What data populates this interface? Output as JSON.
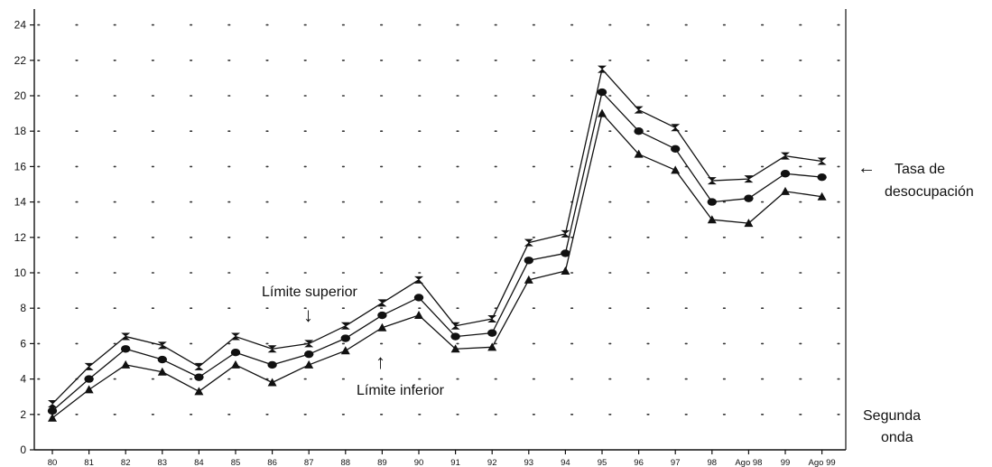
{
  "chart_data": {
    "type": "line",
    "categories": [
      "80",
      "81",
      "82",
      "83",
      "84",
      "85",
      "86",
      "87",
      "88",
      "89",
      "90",
      "91",
      "92",
      "93",
      "94",
      "95",
      "96",
      "97",
      "98",
      "Ago 98",
      "99",
      "Ago 99"
    ],
    "series": [
      {
        "marker": "hourglass",
        "values": [
          2.6,
          4.7,
          6.4,
          5.9,
          4.7,
          6.4,
          5.7,
          6.0,
          7.0,
          8.3,
          9.6,
          7.0,
          7.4,
          11.7,
          12.2,
          21.5,
          19.2,
          18.2,
          15.2,
          15.3,
          16.6,
          16.3
        ]
      },
      {
        "marker": "circle",
        "values": [
          2.2,
          4.0,
          5.7,
          5.1,
          4.1,
          5.5,
          4.8,
          5.4,
          6.3,
          7.6,
          8.6,
          6.4,
          6.6,
          10.7,
          11.1,
          20.2,
          18.0,
          17.0,
          14.0,
          14.2,
          15.6,
          15.4
        ]
      },
      {
        "marker": "triangle",
        "values": [
          1.8,
          3.4,
          4.8,
          4.4,
          3.3,
          4.8,
          3.8,
          4.8,
          5.6,
          6.9,
          7.6,
          5.7,
          5.8,
          9.6,
          10.1,
          19.0,
          16.7,
          15.8,
          13.0,
          12.8,
          14.6,
          14.3
        ]
      }
    ],
    "ylim": [
      0,
      25
    ],
    "yticks": [
      0,
      2,
      4,
      6,
      8,
      10,
      12,
      14,
      16,
      18,
      20,
      22,
      24
    ],
    "grid": "dotted",
    "annotations": {
      "upper": {
        "text": "Límite superior",
        "arrow": "↓"
      },
      "lower": {
        "text": "Límite inferior",
        "arrow": "↑"
      },
      "rate": {
        "arrow": "←",
        "lines": [
          "Tasa de",
          "desocupación"
        ]
      },
      "wave": {
        "lines": [
          "Segunda",
          "onda"
        ]
      }
    }
  }
}
